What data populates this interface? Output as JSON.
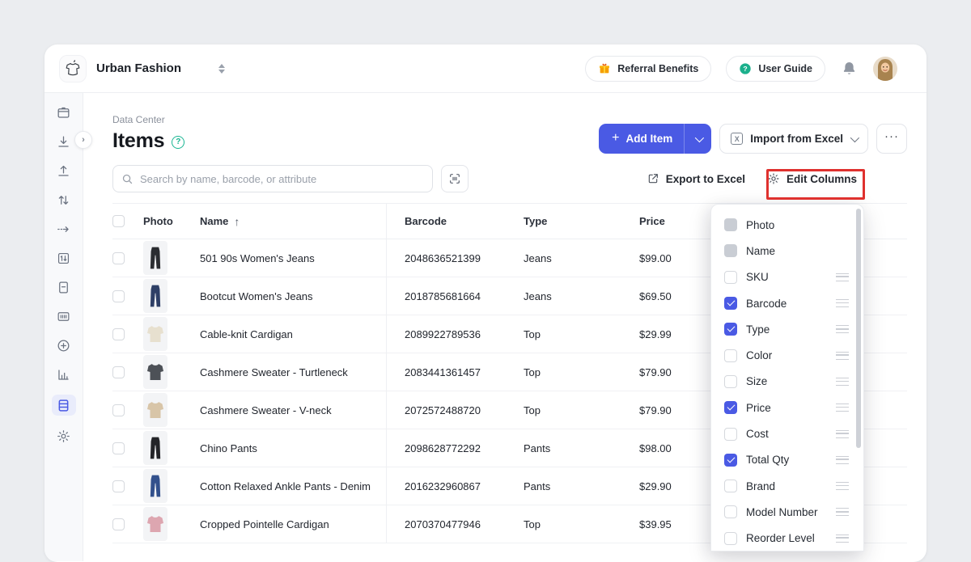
{
  "colors": {
    "accent": "#4a5ae4",
    "annotation": "#df312e",
    "teal": "#19b592",
    "sidebar_bg": "#f8f9fb"
  },
  "topbar": {
    "workspace_name": "Urban Fashion",
    "referral_label": "Referral Benefits",
    "user_guide_label": "User Guide"
  },
  "sidebar": {
    "icons": [
      "package-icon",
      "download-icon",
      "upload-icon",
      "transfer-arrows-icon",
      "stock-out-arrow-icon",
      "count-sheet-icon",
      "document-icon",
      "barcode-label-icon",
      "add-circle-icon",
      "bar-chart-icon",
      "data-center-icon",
      "settings-gear-icon"
    ],
    "active_icon": "data-center-icon",
    "expander": ">"
  },
  "page": {
    "breadcrumb": "Data Center",
    "title": "Items",
    "help_icon": "?"
  },
  "actions": {
    "add_item": "Add Item",
    "add_item_plus": "+",
    "import_from_excel": "Import from Excel",
    "excel_badge": "X",
    "more": "···",
    "export_to_excel": "Export to Excel",
    "edit_columns": "Edit Columns"
  },
  "search": {
    "placeholder": "Search by name, barcode, or attribute"
  },
  "table": {
    "sort_icon": "↑",
    "columns": {
      "photo": "Photo",
      "name": "Name",
      "barcode": "Barcode",
      "type": "Type",
      "price": "Price"
    },
    "rows": [
      {
        "name": "501 90s Women's Jeans",
        "barcode": "2048636521399",
        "type": "Jeans",
        "price": "$99.00",
        "photo_kind": "pants",
        "photo_color": "#2b2d31"
      },
      {
        "name": "Bootcut Women's Jeans",
        "barcode": "2018785681664",
        "type": "Jeans",
        "price": "$69.50",
        "photo_kind": "pants",
        "photo_color": "#2e3f66"
      },
      {
        "name": "Cable-knit Cardigan",
        "barcode": "2089922789536",
        "type": "Top",
        "price": "$29.99",
        "photo_kind": "top",
        "photo_color": "#e7e0cf"
      },
      {
        "name": "Cashmere Sweater - Turtleneck",
        "barcode": "2083441361457",
        "type": "Top",
        "price": "$79.90",
        "photo_kind": "top",
        "photo_color": "#4d5157"
      },
      {
        "name": "Cashmere Sweater - V-neck",
        "barcode": "2072572488720",
        "type": "Top",
        "price": "$79.90",
        "photo_kind": "top",
        "photo_color": "#d8c5a8"
      },
      {
        "name": "Chino Pants",
        "barcode": "2098628772292",
        "type": "Pants",
        "price": "$98.00",
        "photo_kind": "pants",
        "photo_color": "#232428"
      },
      {
        "name": "Cotton Relaxed Ankle Pants - Denim",
        "barcode": "2016232960867",
        "type": "Pants",
        "price": "$29.90",
        "photo_kind": "pants",
        "photo_color": "#32508c"
      },
      {
        "name": "Cropped Pointelle Cardigan",
        "barcode": "2070370477946",
        "type": "Top",
        "price": "$39.95",
        "photo_kind": "top",
        "photo_color": "#dda6b0"
      }
    ]
  },
  "edit_columns_panel": {
    "items": [
      {
        "label": "Photo",
        "state": "disabled",
        "draggable": false
      },
      {
        "label": "Name",
        "state": "disabled",
        "draggable": false
      },
      {
        "label": "SKU",
        "state": "unchecked",
        "draggable": true
      },
      {
        "label": "Barcode",
        "state": "checked",
        "draggable": true
      },
      {
        "label": "Type",
        "state": "checked",
        "draggable": true
      },
      {
        "label": "Color",
        "state": "unchecked",
        "draggable": true
      },
      {
        "label": "Size",
        "state": "unchecked",
        "draggable": true
      },
      {
        "label": "Price",
        "state": "checked",
        "draggable": true
      },
      {
        "label": "Cost",
        "state": "unchecked",
        "draggable": true
      },
      {
        "label": "Total Qty",
        "state": "checked",
        "draggable": true
      },
      {
        "label": "Brand",
        "state": "unchecked",
        "draggable": true
      },
      {
        "label": "Model Number",
        "state": "unchecked",
        "draggable": true
      },
      {
        "label": "Reorder Level",
        "state": "unchecked",
        "draggable": true
      }
    ]
  }
}
